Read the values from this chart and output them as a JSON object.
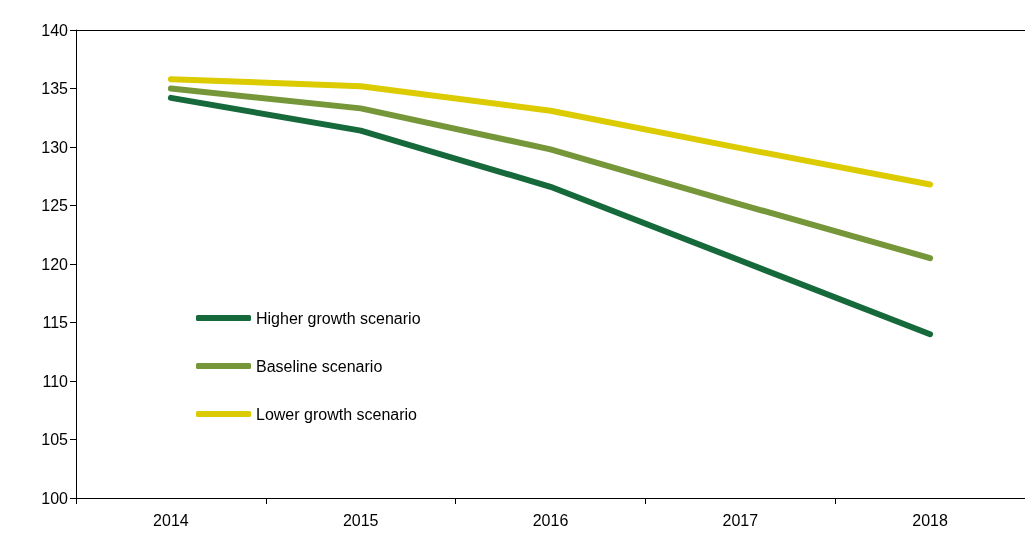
{
  "chart_data": {
    "type": "line",
    "categories": [
      "2014",
      "2015",
      "2016",
      "2017",
      "2018"
    ],
    "series": [
      {
        "name": "Higher growth scenario",
        "color": "#16693a",
        "values": [
          134.2,
          131.4,
          126.6,
          120.3,
          114.0
        ]
      },
      {
        "name": "Baseline scenario",
        "color": "#76963a",
        "values": [
          135.0,
          133.3,
          129.8,
          125.1,
          120.5
        ]
      },
      {
        "name": "Lower growth scenario",
        "color": "#dccb00",
        "values": [
          135.8,
          135.2,
          133.1,
          129.9,
          126.8
        ]
      }
    ],
    "ylim": [
      100,
      140
    ],
    "yticks": [
      100,
      105,
      110,
      115,
      120,
      125,
      130,
      135,
      140
    ],
    "grid": false,
    "legend": "left",
    "marker": "none",
    "line_style": "solid"
  }
}
